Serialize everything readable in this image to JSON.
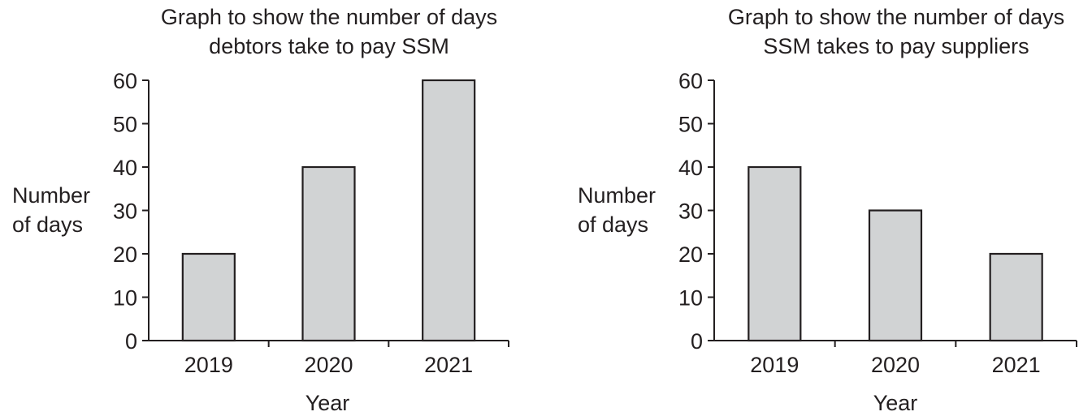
{
  "chart_data": [
    {
      "type": "bar",
      "title_lines": [
        "Graph to show the number of days",
        "debtors take to pay SSM"
      ],
      "ylabel_lines": [
        "Number",
        "of days"
      ],
      "xlabel": "Year",
      "categories": [
        "2019",
        "2020",
        "2021"
      ],
      "values": [
        20,
        40,
        60
      ],
      "ylim": [
        0,
        60
      ],
      "yticks": [
        0,
        10,
        20,
        30,
        40,
        50,
        60
      ],
      "bar_color": "#d1d3d4",
      "edge_color": "#231f20",
      "grid": false
    },
    {
      "type": "bar",
      "title_lines": [
        "Graph to show the number of days",
        "SSM takes to pay suppliers"
      ],
      "ylabel_lines": [
        "Number",
        "of days"
      ],
      "xlabel": "Year",
      "categories": [
        "2019",
        "2020",
        "2021"
      ],
      "values": [
        40,
        30,
        20
      ],
      "ylim": [
        0,
        60
      ],
      "yticks": [
        0,
        10,
        20,
        30,
        40,
        50,
        60
      ],
      "bar_color": "#d1d3d4",
      "edge_color": "#231f20",
      "grid": false
    }
  ]
}
